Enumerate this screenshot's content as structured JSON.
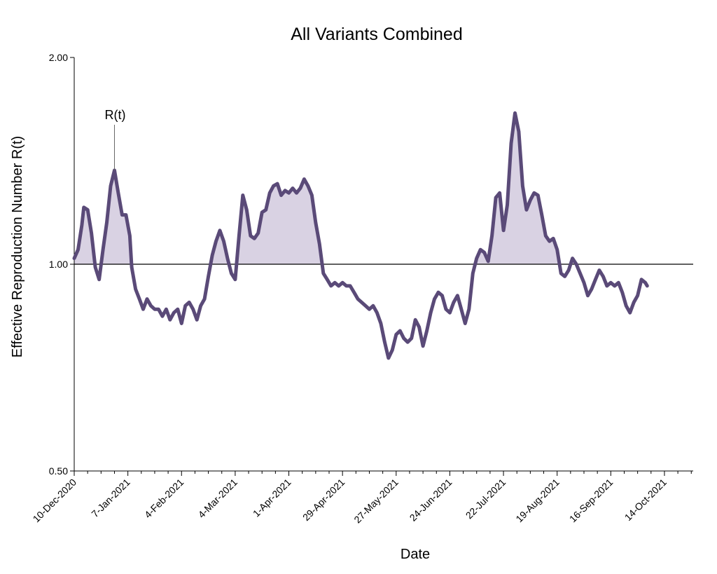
{
  "chart_data": {
    "type": "line",
    "title": "All Variants Combined",
    "xlabel": "Date",
    "ylabel": "Effective Reproduction Number R(t)",
    "yscale": "log",
    "ylim": [
      0.5,
      2.0
    ],
    "yticks": [
      "0.50",
      "1.00",
      "2.00"
    ],
    "xlim": [
      "2020-12-10",
      "2021-10-29"
    ],
    "xticks": [
      "10-Dec-2020",
      "7-Jan-2021",
      "4-Feb-2021",
      "4-Mar-2021",
      "1-Apr-2021",
      "29-Apr-2021",
      "27-May-2021",
      "24-Jun-2021",
      "22-Jul-2021",
      "19-Aug-2021",
      "16-Sep-2021",
      "14-Oct-2021"
    ],
    "reference_line": 1.0,
    "line_color": "#5a4a78",
    "fill_color": "#d9d2e3",
    "annotation": {
      "text": "R(t)",
      "x": "2020-12-31",
      "y": 1.37
    },
    "series": [
      {
        "name": "R(t)",
        "points": [
          [
            "2020-12-10",
            1.02
          ],
          [
            "2020-12-12",
            1.05
          ],
          [
            "2020-12-14",
            1.14
          ],
          [
            "2020-12-15",
            1.21
          ],
          [
            "2020-12-17",
            1.2
          ],
          [
            "2020-12-19",
            1.11
          ],
          [
            "2020-12-21",
            0.99
          ],
          [
            "2020-12-23",
            0.95
          ],
          [
            "2020-12-25",
            1.05
          ],
          [
            "2020-12-27",
            1.15
          ],
          [
            "2020-12-29",
            1.3
          ],
          [
            "2020-12-31",
            1.37
          ],
          [
            "2021-01-02",
            1.27
          ],
          [
            "2021-01-04",
            1.18
          ],
          [
            "2021-01-06",
            1.18
          ],
          [
            "2021-01-08",
            1.1
          ],
          [
            "2021-01-09",
            0.99
          ],
          [
            "2021-01-11",
            0.92
          ],
          [
            "2021-01-13",
            0.89
          ],
          [
            "2021-01-15",
            0.86
          ],
          [
            "2021-01-17",
            0.89
          ],
          [
            "2021-01-19",
            0.87
          ],
          [
            "2021-01-21",
            0.86
          ],
          [
            "2021-01-23",
            0.86
          ],
          [
            "2021-01-25",
            0.84
          ],
          [
            "2021-01-27",
            0.86
          ],
          [
            "2021-01-29",
            0.83
          ],
          [
            "2021-01-31",
            0.85
          ],
          [
            "2021-02-02",
            0.86
          ],
          [
            "2021-02-04",
            0.82
          ],
          [
            "2021-02-06",
            0.87
          ],
          [
            "2021-02-08",
            0.88
          ],
          [
            "2021-02-10",
            0.86
          ],
          [
            "2021-02-12",
            0.83
          ],
          [
            "2021-02-14",
            0.87
          ],
          [
            "2021-02-16",
            0.89
          ],
          [
            "2021-02-18",
            0.96
          ],
          [
            "2021-02-20",
            1.03
          ],
          [
            "2021-02-22",
            1.08
          ],
          [
            "2021-02-24",
            1.12
          ],
          [
            "2021-02-26",
            1.08
          ],
          [
            "2021-02-28",
            1.02
          ],
          [
            "2021-03-02",
            0.97
          ],
          [
            "2021-03-04",
            0.95
          ],
          [
            "2021-03-06",
            1.1
          ],
          [
            "2021-03-08",
            1.26
          ],
          [
            "2021-03-10",
            1.2
          ],
          [
            "2021-03-12",
            1.1
          ],
          [
            "2021-03-14",
            1.09
          ],
          [
            "2021-03-16",
            1.11
          ],
          [
            "2021-03-18",
            1.19
          ],
          [
            "2021-03-20",
            1.2
          ],
          [
            "2021-03-22",
            1.27
          ],
          [
            "2021-03-24",
            1.3
          ],
          [
            "2021-03-26",
            1.31
          ],
          [
            "2021-03-28",
            1.26
          ],
          [
            "2021-03-30",
            1.28
          ],
          [
            "2021-04-01",
            1.27
          ],
          [
            "2021-04-03",
            1.29
          ],
          [
            "2021-04-05",
            1.27
          ],
          [
            "2021-04-07",
            1.29
          ],
          [
            "2021-04-09",
            1.33
          ],
          [
            "2021-04-11",
            1.3
          ],
          [
            "2021-04-13",
            1.26
          ],
          [
            "2021-04-15",
            1.15
          ],
          [
            "2021-04-17",
            1.07
          ],
          [
            "2021-04-19",
            0.97
          ],
          [
            "2021-04-21",
            0.95
          ],
          [
            "2021-04-23",
            0.93
          ],
          [
            "2021-04-25",
            0.94
          ],
          [
            "2021-04-27",
            0.93
          ],
          [
            "2021-04-29",
            0.94
          ],
          [
            "2021-05-01",
            0.93
          ],
          [
            "2021-05-03",
            0.93
          ],
          [
            "2021-05-05",
            0.91
          ],
          [
            "2021-05-07",
            0.89
          ],
          [
            "2021-05-09",
            0.88
          ],
          [
            "2021-05-11",
            0.87
          ],
          [
            "2021-05-13",
            0.86
          ],
          [
            "2021-05-15",
            0.87
          ],
          [
            "2021-05-17",
            0.85
          ],
          [
            "2021-05-19",
            0.82
          ],
          [
            "2021-05-21",
            0.77
          ],
          [
            "2021-05-23",
            0.73
          ],
          [
            "2021-05-25",
            0.75
          ],
          [
            "2021-05-27",
            0.79
          ],
          [
            "2021-05-29",
            0.8
          ],
          [
            "2021-05-31",
            0.78
          ],
          [
            "2021-06-02",
            0.77
          ],
          [
            "2021-06-04",
            0.78
          ],
          [
            "2021-06-06",
            0.83
          ],
          [
            "2021-06-08",
            0.81
          ],
          [
            "2021-06-10",
            0.76
          ],
          [
            "2021-06-12",
            0.8
          ],
          [
            "2021-06-14",
            0.85
          ],
          [
            "2021-06-16",
            0.89
          ],
          [
            "2021-06-18",
            0.91
          ],
          [
            "2021-06-20",
            0.9
          ],
          [
            "2021-06-22",
            0.86
          ],
          [
            "2021-06-24",
            0.85
          ],
          [
            "2021-06-26",
            0.88
          ],
          [
            "2021-06-28",
            0.9
          ],
          [
            "2021-06-30",
            0.86
          ],
          [
            "2021-07-02",
            0.82
          ],
          [
            "2021-07-04",
            0.86
          ],
          [
            "2021-07-06",
            0.97
          ],
          [
            "2021-07-08",
            1.02
          ],
          [
            "2021-07-10",
            1.05
          ],
          [
            "2021-07-12",
            1.04
          ],
          [
            "2021-07-14",
            1.01
          ],
          [
            "2021-07-16",
            1.1
          ],
          [
            "2021-07-18",
            1.25
          ],
          [
            "2021-07-20",
            1.27
          ],
          [
            "2021-07-22",
            1.12
          ],
          [
            "2021-07-24",
            1.22
          ],
          [
            "2021-07-26",
            1.5
          ],
          [
            "2021-07-28",
            1.66
          ],
          [
            "2021-07-30",
            1.56
          ],
          [
            "2021-08-01",
            1.3
          ],
          [
            "2021-08-03",
            1.2
          ],
          [
            "2021-08-05",
            1.24
          ],
          [
            "2021-08-07",
            1.27
          ],
          [
            "2021-08-09",
            1.26
          ],
          [
            "2021-08-11",
            1.18
          ],
          [
            "2021-08-13",
            1.1
          ],
          [
            "2021-08-15",
            1.08
          ],
          [
            "2021-08-17",
            1.09
          ],
          [
            "2021-08-19",
            1.05
          ],
          [
            "2021-08-21",
            0.97
          ],
          [
            "2021-08-23",
            0.96
          ],
          [
            "2021-08-25",
            0.98
          ],
          [
            "2021-08-27",
            1.02
          ],
          [
            "2021-08-29",
            1.0
          ],
          [
            "2021-08-31",
            0.97
          ],
          [
            "2021-09-02",
            0.94
          ],
          [
            "2021-09-04",
            0.9
          ],
          [
            "2021-09-06",
            0.92
          ],
          [
            "2021-09-08",
            0.95
          ],
          [
            "2021-09-10",
            0.98
          ],
          [
            "2021-09-12",
            0.96
          ],
          [
            "2021-09-14",
            0.93
          ],
          [
            "2021-09-16",
            0.94
          ],
          [
            "2021-09-18",
            0.93
          ],
          [
            "2021-09-20",
            0.94
          ],
          [
            "2021-09-22",
            0.91
          ],
          [
            "2021-09-24",
            0.87
          ],
          [
            "2021-09-26",
            0.85
          ],
          [
            "2021-09-28",
            0.88
          ],
          [
            "2021-09-30",
            0.9
          ],
          [
            "2021-10-02",
            0.95
          ],
          [
            "2021-10-04",
            0.94
          ],
          [
            "2021-10-05",
            0.93
          ]
        ]
      }
    ]
  }
}
